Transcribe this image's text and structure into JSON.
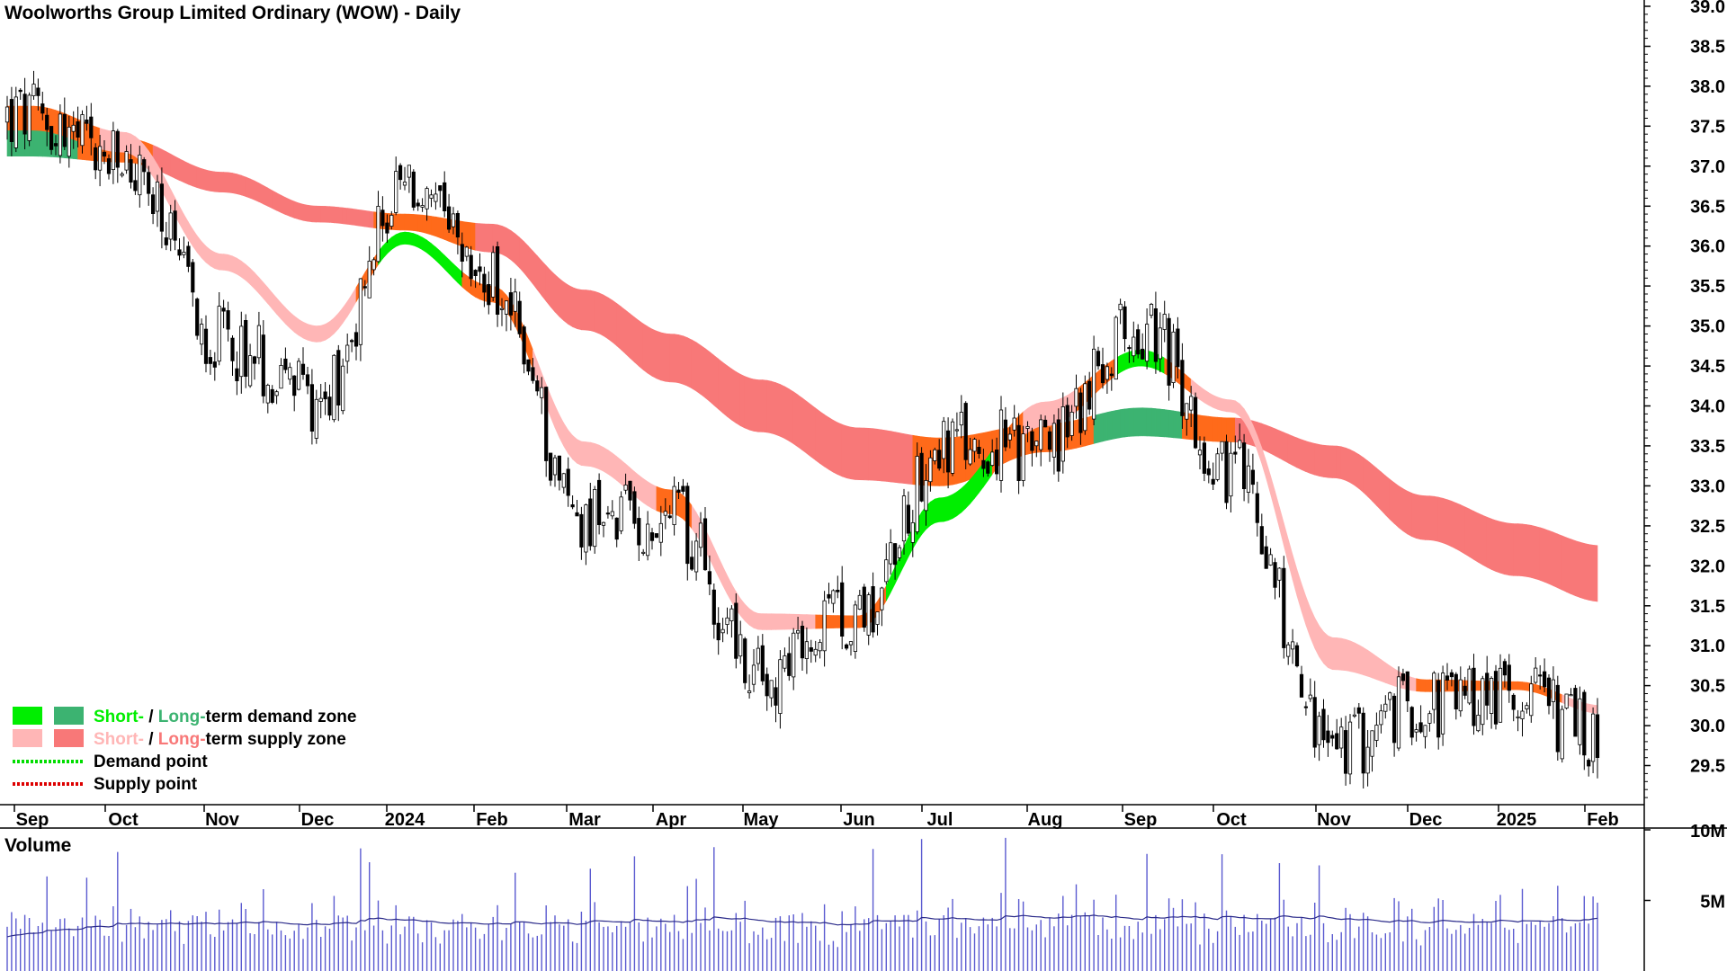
{
  "chart_data": {
    "type": "candlestick",
    "title": "Woolworths Group Limited Ordinary (WOW) - Daily",
    "price_axis": {
      "ylim": [
        29.0,
        39.0
      ],
      "tick_labels": [
        "39.0",
        "38.5",
        "38.0",
        "37.5",
        "37.0",
        "36.5",
        "36.0",
        "35.5",
        "35.0",
        "34.5",
        "34.0",
        "33.5",
        "33.0",
        "32.5",
        "32.0",
        "31.5",
        "31.0",
        "30.5",
        "30.0",
        "29.5"
      ]
    },
    "month_labels": [
      "Sep",
      "Oct",
      "Nov",
      "Dec",
      "2024",
      "Feb",
      "Mar",
      "Apr",
      "May",
      "Jun",
      "Jul",
      "Aug",
      "Sep",
      "Oct",
      "Nov",
      "Dec",
      "2025",
      "Feb"
    ],
    "price_path": {
      "months": [
        "Sep",
        "Oct",
        "Nov",
        "Dec",
        "2024",
        "Feb",
        "Mar",
        "Apr",
        "May",
        "Jun",
        "Jul",
        "Aug",
        "Sep",
        "Oct",
        "Nov",
        "Dec",
        "2025",
        "Feb"
      ],
      "approx_close": [
        37.6,
        37.0,
        34.8,
        34.1,
        36.7,
        35.5,
        32.6,
        32.6,
        30.6,
        31.4,
        33.5,
        33.5,
        35.0,
        33.2,
        29.7,
        30.3,
        30.4,
        29.8
      ],
      "range_low": 29.25,
      "range_high": 38.55,
      "last_close": 29.6
    },
    "bands": {
      "long_term_center": [
        37.3,
        37.2,
        36.8,
        36.4,
        36.3,
        36.1,
        35.2,
        34.6,
        34.0,
        33.4,
        33.3,
        33.6,
        33.8,
        33.7,
        33.3,
        32.6,
        32.2,
        31.9
      ],
      "long_term_width": [
        0.35,
        0.3,
        0.25,
        0.2,
        0.2,
        0.35,
        0.5,
        0.6,
        0.65,
        0.65,
        0.6,
        0.35,
        0.35,
        0.3,
        0.4,
        0.55,
        0.65,
        0.7
      ],
      "short_term_center": [
        37.6,
        37.3,
        35.8,
        34.9,
        36.1,
        35.4,
        33.4,
        32.8,
        31.3,
        31.3,
        32.7,
        33.9,
        34.6,
        34.0,
        30.9,
        30.5,
        30.5,
        30.2
      ],
      "short_term_width": [
        0.3,
        0.25,
        0.2,
        0.2,
        0.15,
        0.2,
        0.3,
        0.3,
        0.2,
        0.15,
        0.3,
        0.3,
        0.2,
        0.15,
        0.4,
        0.15,
        0.1,
        0.1
      ]
    },
    "volume_axis": {
      "ylim": [
        0,
        10
      ],
      "tick_labels": [
        "10M",
        "5M"
      ],
      "label": "Volume",
      "approx_average_millions": 2.4
    },
    "legend": [
      {
        "swatches": [
          "#00ee00",
          "#3cb371"
        ],
        "parts": [
          "Short-",
          " / ",
          "Long-",
          "term demand zone"
        ]
      },
      {
        "swatches": [
          "#ffb6b6",
          "#f87878"
        ],
        "parts": [
          "Short-",
          " / ",
          "Long-",
          "term supply zone"
        ]
      },
      {
        "line_color": "#00dd00",
        "parts": [
          "Demand point"
        ]
      },
      {
        "line_color": "#dd0000",
        "parts": [
          "Supply point"
        ]
      }
    ],
    "colors": {
      "short_demand": "#00ee00",
      "long_demand": "#3cb371",
      "short_supply": "#ffb6b6",
      "long_supply": "#f87878",
      "overlap": "#ff6a1a",
      "volume_bar": "#5a5ad0",
      "volume_avg": "#2b2b8a",
      "volume_label": "#3a1a7a"
    },
    "legend_placement": "bottom-left",
    "grid": false
  }
}
